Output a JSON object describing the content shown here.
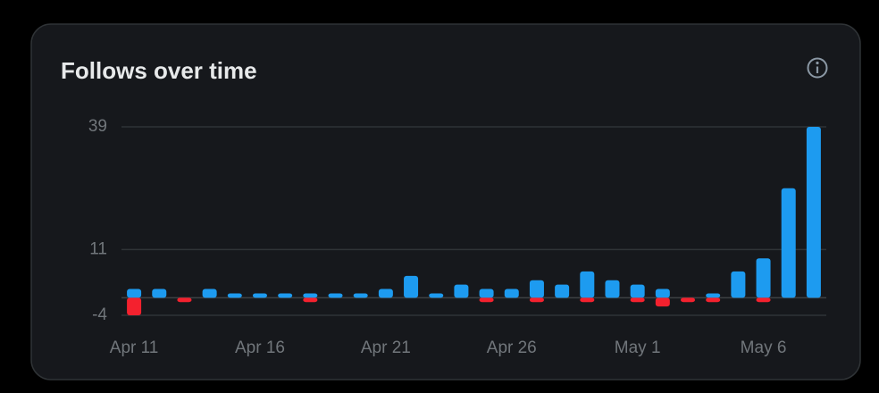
{
  "chart_data": {
    "type": "bar",
    "title": "Follows over time",
    "categories": [
      "Apr 11",
      null,
      null,
      null,
      null,
      "Apr 16",
      null,
      null,
      null,
      null,
      "Apr 21",
      null,
      null,
      null,
      null,
      "Apr 26",
      null,
      null,
      null,
      null,
      "May 1",
      null,
      null,
      null,
      null,
      "May 6",
      null,
      null
    ],
    "series": [
      {
        "color": "#1d9bf0",
        "values": [
          2,
          2,
          0,
          2,
          1,
          1,
          1,
          1,
          1,
          1,
          2,
          5,
          1,
          3,
          2,
          2,
          4,
          3,
          6,
          4,
          3,
          2,
          0,
          1,
          6,
          9,
          25,
          39
        ]
      },
      {
        "color": "#f4212e",
        "values": [
          -4,
          0,
          -1,
          0,
          0,
          0,
          0,
          -1,
          0,
          0,
          0,
          0,
          0,
          0,
          -1,
          0,
          -1,
          0,
          -1,
          0,
          -1,
          -2,
          -1,
          -1,
          0,
          -1,
          0,
          0
        ]
      }
    ],
    "ylim": [
      -4,
      39
    ],
    "yticks": [
      -4,
      11,
      39
    ],
    "grid": true
  }
}
